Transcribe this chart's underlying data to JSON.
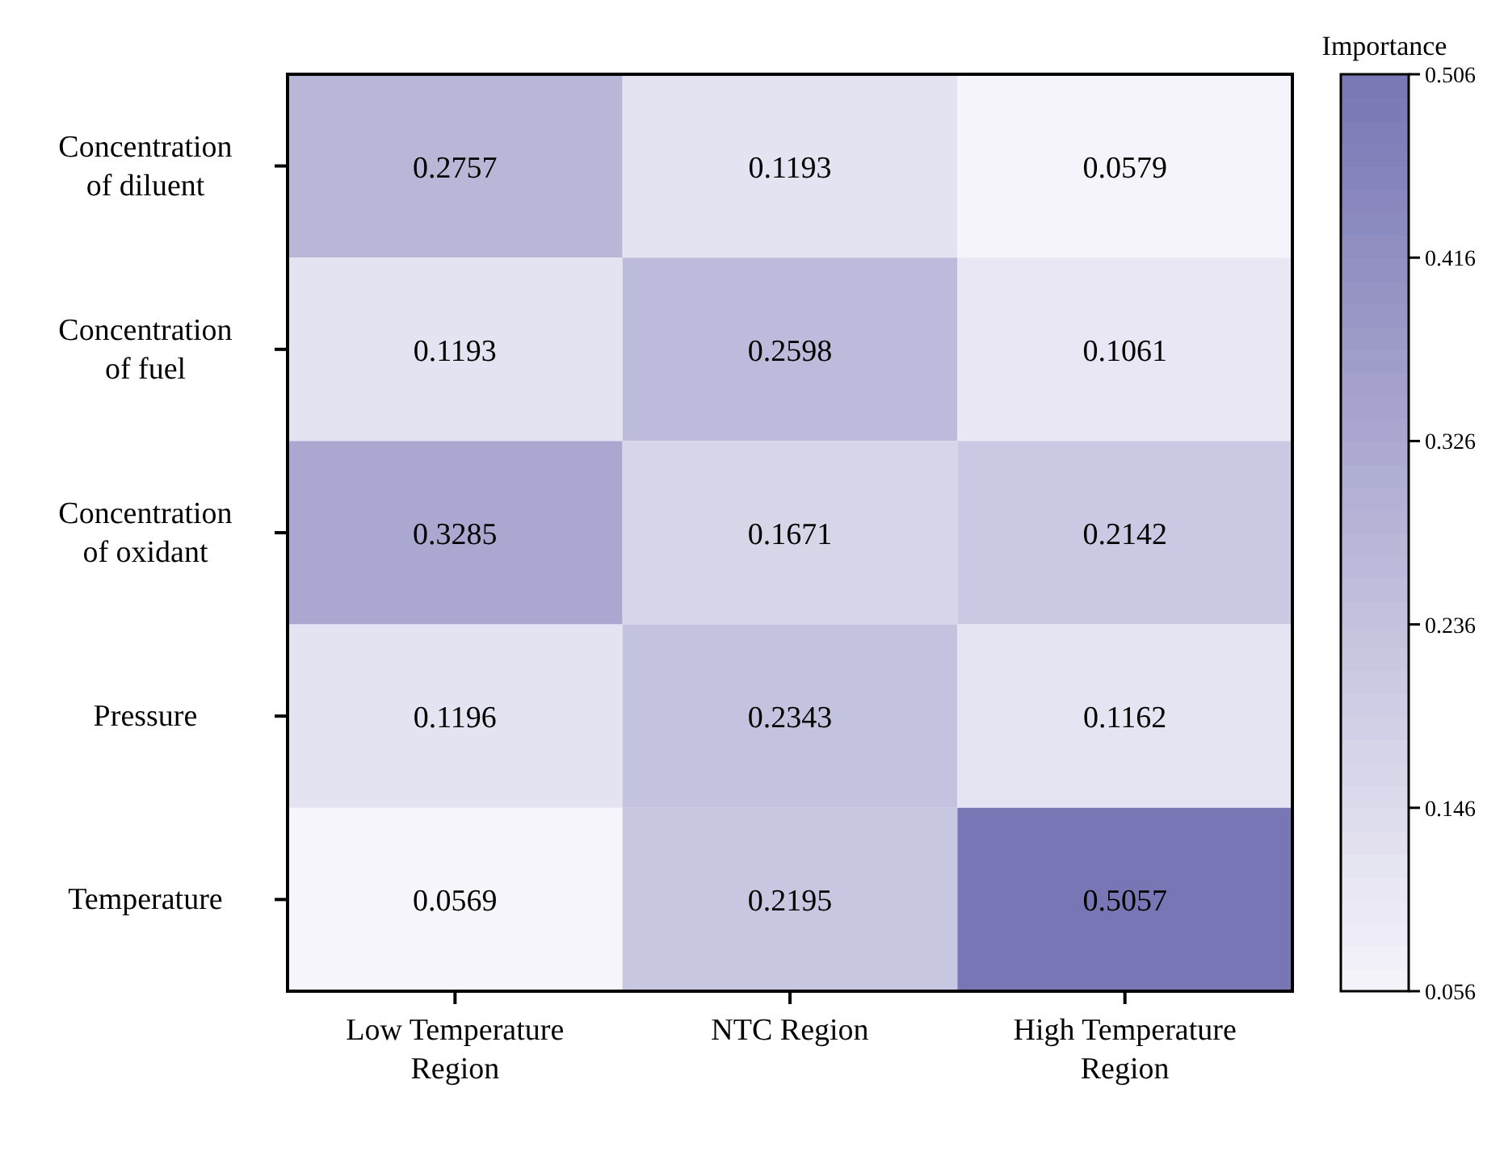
{
  "chart_data": {
    "type": "heatmap",
    "categories": [
      "Low Temperature Region",
      "NTC Region",
      "High Temperature Region"
    ],
    "y_categories": [
      "Concentration of diluent",
      "Concentration of fuel",
      "Concentration of oxidant",
      "Pressure",
      "Temperature"
    ],
    "cells": [
      [
        0.2757,
        0.1193,
        0.0579
      ],
      [
        0.1193,
        0.2598,
        0.1061
      ],
      [
        0.3285,
        0.1671,
        0.2142
      ],
      [
        0.1196,
        0.2343,
        0.1162
      ],
      [
        0.0569,
        0.2195,
        0.5057
      ]
    ],
    "data_labels": true,
    "clabel": "Importance",
    "clim": [
      0.056,
      0.506
    ],
    "cticks": [
      0.056,
      0.146,
      0.236,
      0.326,
      0.416,
      0.506
    ],
    "colors": [
      "#f6f5fb",
      "#7876b4"
    ]
  }
}
